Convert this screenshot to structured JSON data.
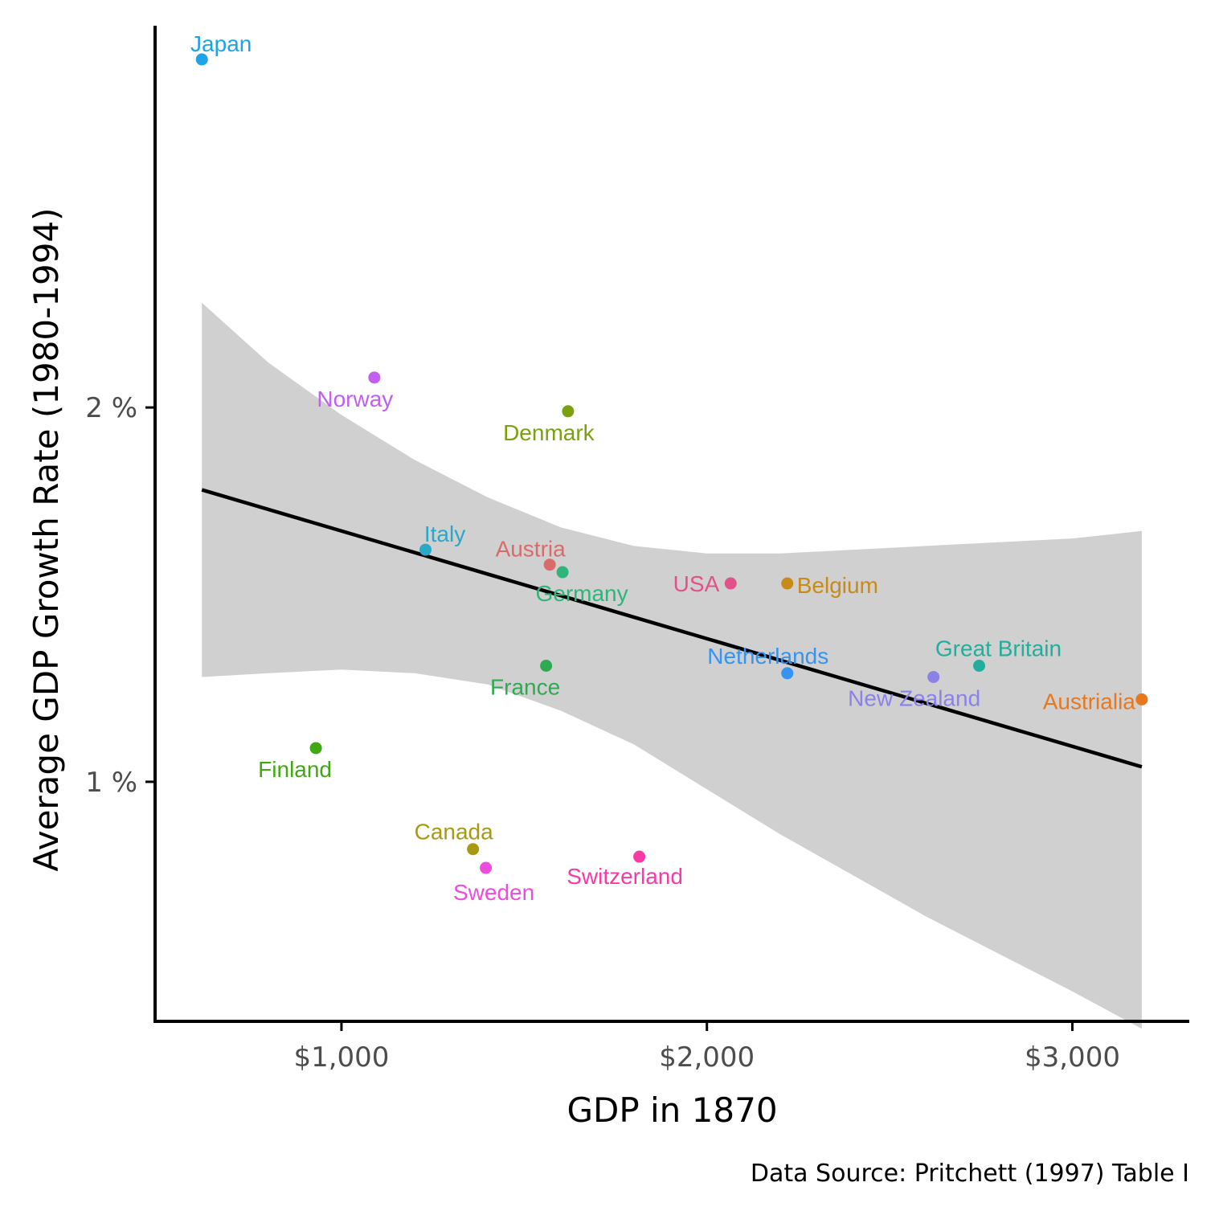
{
  "chart_data": {
    "type": "scatter",
    "xlabel": "GDP in 1870",
    "ylabel": "Average GDP Growth Rate (1980-1994)",
    "caption": "Data Source: Pritchett (1997) Table I",
    "xlim": [
      490,
      3320
    ],
    "ylim": [
      0.36,
      3.02
    ],
    "x_ticks": [
      1000,
      2000,
      3000
    ],
    "x_tick_labels": [
      "$1,000",
      "$2,000",
      "$3,000"
    ],
    "y_ticks": [
      1,
      2
    ],
    "y_tick_labels": [
      "1 %",
      "2 %"
    ],
    "grid": false,
    "legend": "none",
    "fit": {
      "method": "linear regression",
      "x_range": [
        618,
        3190
      ],
      "line_y": [
        1.78,
        1.04
      ],
      "ribbon_x": [
        618,
        800,
        1000,
        1200,
        1400,
        1600,
        1800,
        2000,
        2200,
        2400,
        2600,
        2800,
        3000,
        3190
      ],
      "ribbon_upper": [
        2.28,
        2.12,
        1.98,
        1.86,
        1.76,
        1.68,
        1.63,
        1.61,
        1.61,
        1.62,
        1.63,
        1.64,
        1.65,
        1.67
      ],
      "ribbon_lower": [
        1.28,
        1.29,
        1.3,
        1.29,
        1.26,
        1.19,
        1.1,
        0.98,
        0.86,
        0.75,
        0.64,
        0.54,
        0.44,
        0.34
      ],
      "line_color": "#000000",
      "ribbon_color": "#d0d0d0"
    },
    "points": [
      {
        "label": "Japan",
        "x": 618,
        "y": 2.93,
        "color": "#1fa3e8",
        "label_dx": 24,
        "label_dy": -10,
        "anchor": "middle"
      },
      {
        "label": "Norway",
        "x": 1090,
        "y": 2.08,
        "color": "#c35ff0",
        "label_dx": -24,
        "label_dy": 36,
        "anchor": "middle"
      },
      {
        "label": "Denmark",
        "x": 1620,
        "y": 1.99,
        "color": "#7aa10f",
        "label_dx": -24,
        "label_dy": 36,
        "anchor": "middle"
      },
      {
        "label": "Italy",
        "x": 1230,
        "y": 1.62,
        "color": "#2aa8c7",
        "label_dx": 24,
        "label_dy": -10,
        "anchor": "middle"
      },
      {
        "label": "Austria",
        "x": 1570,
        "y": 1.58,
        "color": "#d96b6b",
        "label_dx": -24,
        "label_dy": -10,
        "anchor": "middle"
      },
      {
        "label": "Germany",
        "x": 1605,
        "y": 1.56,
        "color": "#2fb57a",
        "label_dx": 24,
        "label_dy": 36,
        "anchor": "middle"
      },
      {
        "label": "USA",
        "x": 2065,
        "y": 1.53,
        "color": "#e0528a",
        "label_dx": -14,
        "label_dy": 10,
        "anchor": "end"
      },
      {
        "label": "Belgium",
        "x": 2220,
        "y": 1.53,
        "color": "#c88a19",
        "label_dx": 12,
        "label_dy": 12,
        "anchor": "start"
      },
      {
        "label": "France",
        "x": 1560,
        "y": 1.31,
        "color": "#2faa53",
        "label_dx": -26,
        "label_dy": 36,
        "anchor": "middle"
      },
      {
        "label": "Netherlands",
        "x": 2220,
        "y": 1.29,
        "color": "#3593f2",
        "label_dx": -24,
        "label_dy": -12,
        "anchor": "middle"
      },
      {
        "label": "Great Britain",
        "x": 2745,
        "y": 1.31,
        "color": "#22ad9c",
        "label_dx": 24,
        "label_dy": -12,
        "anchor": "middle"
      },
      {
        "label": "New Zealand",
        "x": 2620,
        "y": 1.28,
        "color": "#8a82e8",
        "label_dx": -24,
        "label_dy": 36,
        "anchor": "middle"
      },
      {
        "label": "Austrialia",
        "x": 3190,
        "y": 1.22,
        "color": "#e7781e",
        "label_dx": -8,
        "label_dy": 12,
        "anchor": "end"
      },
      {
        "label": "Finland",
        "x": 930,
        "y": 1.09,
        "color": "#40a812",
        "label_dx": -26,
        "label_dy": 36,
        "anchor": "middle"
      },
      {
        "label": "Canada",
        "x": 1360,
        "y": 0.82,
        "color": "#a89912",
        "label_dx": -24,
        "label_dy": -12,
        "anchor": "middle"
      },
      {
        "label": "Sweden",
        "x": 1395,
        "y": 0.77,
        "color": "#ec4ddd",
        "label_dx": 10,
        "label_dy": 40,
        "anchor": "middle"
      },
      {
        "label": "Switzerland",
        "x": 1815,
        "y": 0.8,
        "color": "#f93aa5",
        "label_dx": -18,
        "label_dy": 34,
        "anchor": "middle"
      }
    ]
  }
}
